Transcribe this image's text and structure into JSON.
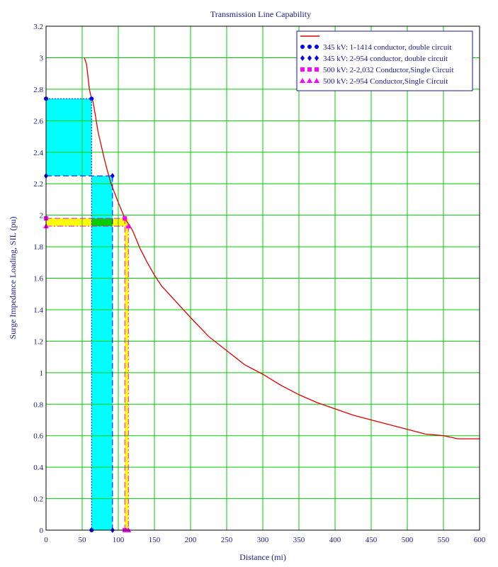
{
  "chart_data": {
    "type": "line",
    "title": "Transmission Line Capability",
    "xlabel": "Distance (mi)",
    "ylabel": "Surge Impedance Loading, SIL (pu)",
    "xlim": [
      0,
      600
    ],
    "ylim": [
      0,
      3.2
    ],
    "grid": true,
    "legend_position": "top-right",
    "x_ticks": [
      0,
      50,
      100,
      150,
      200,
      250,
      300,
      350,
      400,
      450,
      500,
      550,
      600
    ],
    "y_ticks": [
      0,
      0.2,
      0.4,
      0.6,
      0.8,
      1,
      1.2,
      1.4,
      1.6,
      1.8,
      2,
      2.2,
      2.4,
      2.6,
      2.8,
      3,
      3.2
    ],
    "curve": {
      "name": "",
      "color": "#e00000",
      "x": [
        53,
        56,
        58,
        60,
        62,
        65,
        68,
        72,
        76,
        80,
        85,
        90,
        95,
        100,
        110,
        115,
        120,
        130,
        140,
        150,
        160,
        180,
        200,
        225,
        250,
        275,
        300,
        325,
        350,
        375,
        400,
        425,
        450,
        475,
        500,
        525,
        550,
        570,
        600
      ],
      "y": [
        3.0,
        2.96,
        2.88,
        2.8,
        2.76,
        2.72,
        2.64,
        2.53,
        2.45,
        2.37,
        2.28,
        2.2,
        2.14,
        2.08,
        1.97,
        1.94,
        1.9,
        1.79,
        1.7,
        1.62,
        1.55,
        1.45,
        1.35,
        1.23,
        1.14,
        1.05,
        0.99,
        0.92,
        0.86,
        0.81,
        0.77,
        0.73,
        0.7,
        0.67,
        0.64,
        0.61,
        0.6,
        0.58,
        0.58
      ]
    },
    "series": [
      {
        "name": "345 kV: 1-1414 conductor, double circuit",
        "x": 63,
        "y": 2.74,
        "color": "#0000ff",
        "marker": "circle",
        "line": "dotted"
      },
      {
        "name": "345 kV: 2-954 conductor, double circuit",
        "x": 92,
        "y": 2.25,
        "color": "#0000ff",
        "marker": "diamond",
        "line": "dashed"
      },
      {
        "name": "500 kV: 2-2,032 Conductor,Single Circuit",
        "x": 109,
        "y": 1.98,
        "color": "#ff00ff",
        "marker": "square",
        "line": "dashed"
      },
      {
        "name": "500 kV: 2-954 Conductor,Single Circuit",
        "x": 114,
        "y": 1.93,
        "color": "#ff00ff",
        "marker": "triangle",
        "line": "dashdot"
      }
    ],
    "fill_colors": {
      "cyan": "#00ffff",
      "yellow": "#ffff00",
      "overlap": "#00cc00"
    }
  },
  "colors": {
    "grid": "#00cc00",
    "axis_text": "#1a1a8c",
    "frame": "#000000"
  }
}
